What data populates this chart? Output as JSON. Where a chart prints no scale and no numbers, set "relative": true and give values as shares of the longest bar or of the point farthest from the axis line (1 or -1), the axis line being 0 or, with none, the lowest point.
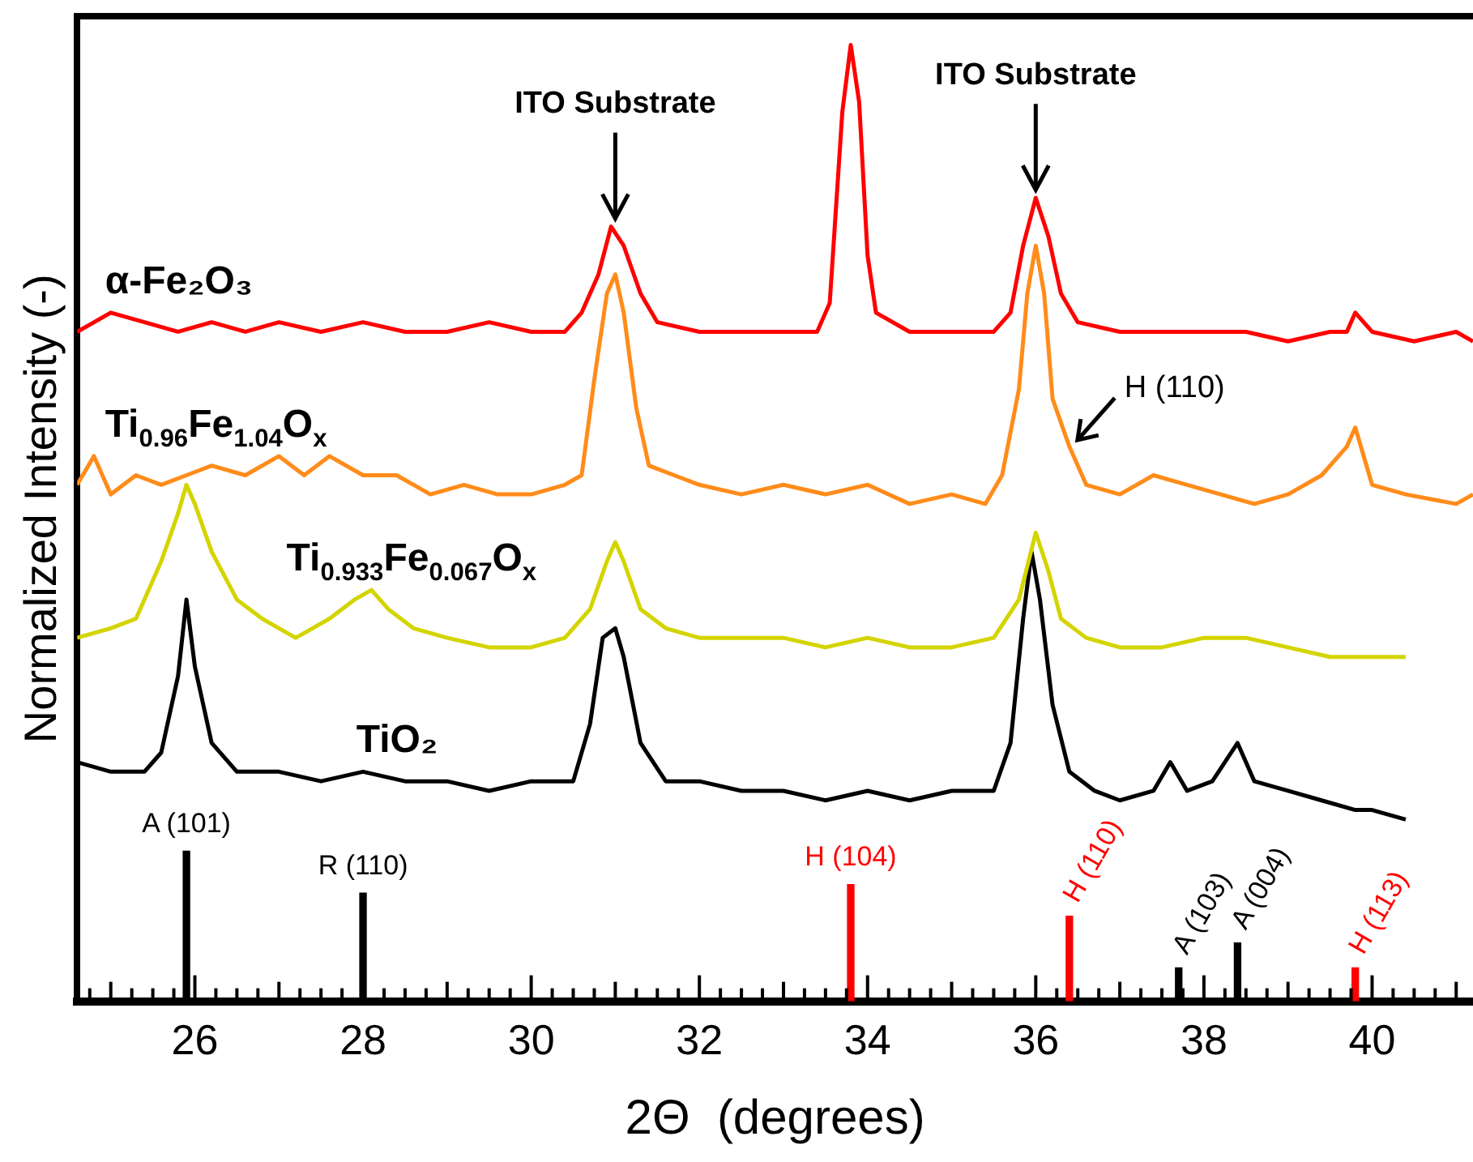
{
  "chart_data": {
    "type": "line",
    "relative": true,
    "xlabel": "2Θ  (degrees)",
    "ylabel": "Normalized Intensity (-)",
    "xlim": [
      24.6,
      41.2
    ],
    "xticks": [
      {
        "value": 24.75,
        "label": null
      },
      {
        "value": 25,
        "label": null
      },
      {
        "value": 25.25,
        "label": null
      },
      {
        "value": 25.5,
        "label": null
      },
      {
        "value": 25.75,
        "label": null
      },
      26,
      {
        "value": 26.25,
        "label": null
      },
      {
        "value": 26.5,
        "label": null
      },
      {
        "value": 26.75,
        "label": null
      },
      {
        "value": 27,
        "label": null
      },
      {
        "value": 27.25,
        "label": null
      },
      {
        "value": 27.5,
        "label": null
      },
      {
        "value": 27.75,
        "label": null
      },
      28,
      {
        "value": 28.25,
        "label": null
      },
      {
        "value": 28.5,
        "label": null
      },
      {
        "value": 28.75,
        "label": null
      },
      {
        "value": 29,
        "label": null
      },
      {
        "value": 29.25,
        "label": null
      },
      {
        "value": 29.5,
        "label": null
      },
      {
        "value": 29.75,
        "label": null
      },
      30,
      {
        "value": 30.25,
        "label": null
      },
      {
        "value": 30.5,
        "label": null
      },
      {
        "value": 30.75,
        "label": null
      },
      {
        "value": 31,
        "label": null
      },
      {
        "value": 31.25,
        "label": null
      },
      {
        "value": 31.5,
        "label": null
      },
      {
        "value": 31.75,
        "label": null
      },
      32,
      {
        "value": 32.25,
        "label": null
      },
      {
        "value": 32.5,
        "label": null
      },
      {
        "value": 32.75,
        "label": null
      },
      {
        "value": 33,
        "label": null
      },
      {
        "value": 33.25,
        "label": null
      },
      {
        "value": 33.5,
        "label": null
      },
      {
        "value": 33.75,
        "label": null
      },
      34,
      {
        "value": 34.25,
        "label": null
      },
      {
        "value": 34.5,
        "label": null
      },
      {
        "value": 34.75,
        "label": null
      },
      {
        "value": 35,
        "label": null
      },
      {
        "value": 35.25,
        "label": null
      },
      {
        "value": 35.5,
        "label": null
      },
      {
        "value": 35.75,
        "label": null
      },
      36,
      {
        "value": 36.25,
        "label": null
      },
      {
        "value": 36.5,
        "label": null
      },
      {
        "value": 36.75,
        "label": null
      },
      {
        "value": 37,
        "label": null
      },
      {
        "value": 37.25,
        "label": null
      },
      {
        "value": 37.5,
        "label": null
      },
      {
        "value": 37.75,
        "label": null
      },
      38,
      {
        "value": 38.25,
        "label": null
      },
      {
        "value": 38.5,
        "label": null
      },
      {
        "value": 38.75,
        "label": null
      },
      {
        "value": 39,
        "label": null
      },
      {
        "value": 39.25,
        "label": null
      },
      {
        "value": 39.5,
        "label": null
      },
      {
        "value": 39.75,
        "label": null
      },
      40,
      {
        "value": 40.25,
        "label": null
      },
      {
        "value": 40.5,
        "label": null
      },
      {
        "value": 40.75,
        "label": null
      },
      {
        "value": 41,
        "label": null
      }
    ],
    "grid": false,
    "legend": false,
    "marker": "none",
    "line_style": "solid",
    "series": [
      {
        "name": "α-Fe₂O₃",
        "color": "#ff0000",
        "x": [
          24.6,
          25.0,
          25.4,
          25.8,
          26.2,
          26.6,
          27.0,
          27.5,
          28.0,
          28.5,
          29.0,
          29.5,
          30.0,
          30.4,
          30.6,
          30.8,
          30.95,
          31.1,
          31.3,
          31.5,
          32.0,
          32.5,
          33.0,
          33.4,
          33.55,
          33.7,
          33.8,
          33.9,
          34.0,
          34.1,
          34.5,
          35.0,
          35.5,
          35.7,
          35.85,
          36.0,
          36.15,
          36.3,
          36.5,
          37.0,
          37.5,
          38.0,
          38.5,
          39.0,
          39.5,
          39.7,
          39.8,
          40.0,
          40.5,
          41.0,
          41.2
        ],
        "values": [
          0.7,
          0.72,
          0.71,
          0.7,
          0.71,
          0.7,
          0.71,
          0.7,
          0.71,
          0.7,
          0.7,
          0.71,
          0.7,
          0.7,
          0.72,
          0.76,
          0.81,
          0.79,
          0.74,
          0.71,
          0.7,
          0.7,
          0.7,
          0.7,
          0.73,
          0.93,
          1.0,
          0.94,
          0.78,
          0.72,
          0.7,
          0.7,
          0.7,
          0.72,
          0.79,
          0.84,
          0.8,
          0.74,
          0.71,
          0.7,
          0.7,
          0.7,
          0.7,
          0.69,
          0.7,
          0.7,
          0.72,
          0.7,
          0.69,
          0.7,
          0.69
        ]
      },
      {
        "name": "Ti$_{0.96}$Fe$_{1.04}$O$_{x}$",
        "color": "#ff8c1a",
        "x": [
          24.6,
          24.8,
          25.0,
          25.3,
          25.6,
          25.9,
          26.2,
          26.6,
          27.0,
          27.3,
          27.6,
          28.0,
          28.4,
          28.8,
          29.2,
          29.6,
          30.0,
          30.4,
          30.6,
          30.75,
          30.9,
          31.0,
          31.1,
          31.25,
          31.4,
          31.7,
          32.0,
          32.5,
          33.0,
          33.5,
          34.0,
          34.5,
          35.0,
          35.4,
          35.6,
          35.8,
          35.9,
          36.0,
          36.1,
          36.2,
          36.4,
          36.6,
          37.0,
          37.4,
          37.8,
          38.2,
          38.6,
          39.0,
          39.4,
          39.7,
          39.8,
          40.0,
          40.4,
          41.0,
          41.2
        ],
        "values": [
          0.54,
          0.57,
          0.53,
          0.55,
          0.54,
          0.55,
          0.56,
          0.55,
          0.57,
          0.55,
          0.57,
          0.55,
          0.55,
          0.53,
          0.54,
          0.53,
          0.53,
          0.54,
          0.55,
          0.65,
          0.74,
          0.76,
          0.72,
          0.62,
          0.56,
          0.55,
          0.54,
          0.53,
          0.54,
          0.53,
          0.54,
          0.52,
          0.53,
          0.52,
          0.55,
          0.64,
          0.74,
          0.79,
          0.74,
          0.63,
          0.58,
          0.54,
          0.53,
          0.55,
          0.54,
          0.53,
          0.52,
          0.53,
          0.55,
          0.58,
          0.6,
          0.54,
          0.53,
          0.52,
          0.53
        ]
      },
      {
        "name": "Ti$_{0.933}$Fe$_{0.067}$O$_{x}$",
        "color": "#d4d400",
        "x": [
          24.6,
          25.0,
          25.3,
          25.6,
          25.8,
          25.9,
          26.0,
          26.2,
          26.5,
          26.8,
          27.2,
          27.6,
          27.9,
          28.1,
          28.3,
          28.6,
          29.0,
          29.5,
          30.0,
          30.4,
          30.7,
          30.9,
          31.0,
          31.1,
          31.3,
          31.6,
          32.0,
          32.5,
          33.0,
          33.5,
          34.0,
          34.5,
          35.0,
          35.5,
          35.8,
          36.0,
          36.15,
          36.3,
          36.6,
          37.0,
          37.5,
          38.0,
          38.5,
          39.0,
          39.5,
          40.0,
          40.4
        ],
        "values": [
          0.38,
          0.39,
          0.4,
          0.46,
          0.51,
          0.54,
          0.52,
          0.47,
          0.42,
          0.4,
          0.38,
          0.4,
          0.42,
          0.43,
          0.41,
          0.39,
          0.38,
          0.37,
          0.37,
          0.38,
          0.41,
          0.46,
          0.48,
          0.46,
          0.41,
          0.39,
          0.38,
          0.38,
          0.38,
          0.37,
          0.38,
          0.37,
          0.37,
          0.38,
          0.42,
          0.49,
          0.45,
          0.4,
          0.38,
          0.37,
          0.37,
          0.38,
          0.38,
          0.37,
          0.36,
          0.36,
          0.36
        ]
      },
      {
        "name": "TiO₂",
        "color": "#000000",
        "x": [
          24.6,
          25.0,
          25.4,
          25.6,
          25.8,
          25.9,
          26.0,
          26.2,
          26.5,
          27.0,
          27.5,
          28.0,
          28.5,
          29.0,
          29.5,
          30.0,
          30.5,
          30.7,
          30.85,
          31.0,
          31.1,
          31.3,
          31.6,
          32.0,
          32.5,
          33.0,
          33.5,
          34.0,
          34.5,
          35.0,
          35.5,
          35.7,
          35.85,
          35.95,
          36.05,
          36.2,
          36.4,
          36.7,
          37.0,
          37.4,
          37.6,
          37.8,
          38.1,
          38.4,
          38.6,
          39.0,
          39.4,
          39.8,
          40.0,
          40.4
        ],
        "values": [
          0.25,
          0.24,
          0.24,
          0.26,
          0.34,
          0.42,
          0.35,
          0.27,
          0.24,
          0.24,
          0.23,
          0.24,
          0.23,
          0.23,
          0.22,
          0.23,
          0.23,
          0.29,
          0.38,
          0.39,
          0.36,
          0.27,
          0.23,
          0.23,
          0.22,
          0.22,
          0.21,
          0.22,
          0.21,
          0.22,
          0.22,
          0.27,
          0.4,
          0.47,
          0.42,
          0.31,
          0.24,
          0.22,
          0.21,
          0.22,
          0.25,
          0.22,
          0.23,
          0.27,
          0.23,
          0.22,
          0.21,
          0.2,
          0.2,
          0.19
        ]
      },
      {
        "type": "bar",
        "x": [
          25.9,
          28.0,
          33.8,
          36.4,
          37.7,
          38.4,
          39.8
        ],
        "values": [
          0.157,
          0.113,
          0.122,
          0.089,
          0.035,
          0.061,
          0.035
        ],
        "colors": [
          "#000000",
          "#000000",
          "#ff0000",
          "#ff0000",
          "#000000",
          "#000000",
          "#ff0000"
        ]
      }
    ],
    "annotations": [
      {
        "text": "ITO Substrate",
        "x": 31.0,
        "y": 0.81
      },
      {
        "text": "ITO Substrate",
        "x": 36.0,
        "y": 0.84
      },
      {
        "text": "H (110)",
        "x": 36.4,
        "y": 0.58
      },
      {
        "text": "A (101)",
        "x": 25.9,
        "y": 0.157
      },
      {
        "text": "R (110)",
        "x": 28.0,
        "y": 0.113
      },
      {
        "text": "H (104)",
        "x": 33.8,
        "y": 0.122
      },
      {
        "text": "H (110)",
        "x": 36.4,
        "y": 0.089
      },
      {
        "text": "A (103)",
        "x": 37.7,
        "y": 0.035
      },
      {
        "text": "A (004)",
        "x": 38.4,
        "y": 0.061
      },
      {
        "text": "H (113)",
        "x": 39.8,
        "y": 0.035
      }
    ]
  }
}
